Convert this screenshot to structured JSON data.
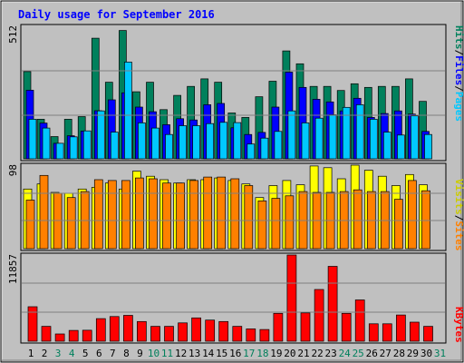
{
  "chart_data": {
    "type": "bar",
    "title": "Daily usage for September 2016",
    "categories": [
      "1",
      "2",
      "3",
      "4",
      "5",
      "6",
      "7",
      "8",
      "9",
      "10",
      "11",
      "12",
      "13",
      "14",
      "15",
      "16",
      "17",
      "18",
      "19",
      "20",
      "21",
      "22",
      "23",
      "24",
      "25",
      "26",
      "27",
      "28",
      "29",
      "30",
      "31"
    ],
    "weekend_days": [
      "3",
      "4",
      "10",
      "11",
      "17",
      "18",
      "24",
      "25",
      "31"
    ],
    "panels": [
      {
        "name": "hits-files-pages",
        "scale_label": "512",
        "scale_max": 512,
        "right_labels": [
          "Pages",
          "Files",
          "Hits"
        ],
        "series": [
          {
            "name": "Hits",
            "color": "#00805c",
            "values": [
              337,
              153,
              86,
              153,
              163,
              466,
              296,
              496,
              259,
              296,
              190,
              245,
              280,
              309,
              296,
              177,
              160,
              240,
              300,
              417,
              367,
              280,
              280,
              264,
              290,
              276,
              280,
              280,
              309,
              222,
              0
            ]
          },
          {
            "name": "Files",
            "color": "#0000ff",
            "values": [
              265,
              138,
              60,
              89,
              107,
              186,
              228,
              255,
              200,
              182,
              132,
              155,
              150,
              209,
              214,
              120,
              94,
              102,
              200,
              335,
              276,
              230,
              220,
              185,
              234,
              160,
              175,
              185,
              173,
              106,
              0
            ]
          },
          {
            "name": "Pages",
            "color": "#00c8ff",
            "values": [
              153,
              119,
              60,
              85,
              108,
              185,
              103,
              374,
              139,
              119,
              94,
              128,
              128,
              136,
              141,
              140,
              57,
              80,
              106,
              185,
              139,
              157,
              170,
              199,
              209,
              153,
              103,
              92,
              166,
              94,
              0
            ]
          }
        ]
      },
      {
        "name": "sites-visits",
        "scale_label": "98",
        "scale_max": 98,
        "right_labels": [
          "Sites",
          "Visits"
        ],
        "series": [
          {
            "name": "Visits",
            "color": "#ffff00",
            "values": [
              70,
              76,
              66,
              65,
              70,
              72,
              77,
              70,
              91,
              85,
              81,
              77,
              81,
              81,
              83,
              80,
              76,
              60,
              74,
              80,
              75,
              97,
              95,
              82,
              98,
              92,
              85,
              74,
              87,
              75,
              0
            ]
          },
          {
            "name": "Sites",
            "color": "#ff8000",
            "values": [
              57,
              86,
              65,
              60,
              67,
              81,
              80,
              80,
              83,
              82,
              77,
              77,
              80,
              84,
              84,
              82,
              74,
              56,
              59,
              62,
              67,
              66,
              66,
              67,
              69,
              67,
              67,
              58,
              80,
              68,
              0
            ]
          }
        ]
      },
      {
        "name": "kbytes",
        "scale_label": "11857",
        "scale_max": 11857,
        "right_labels": [
          "KBytes"
        ],
        "series": [
          {
            "name": "KBytes",
            "color": "#ff0000",
            "values": [
              4740,
              2045,
              1004,
              1491,
              1512,
              3106,
              3394,
              3560,
              2703,
              2045,
              2045,
              2525,
              3204,
              2902,
              2703,
              2045,
              1695,
              1610,
              3833,
              11857,
              3900,
              7110,
              10297,
              3833,
              5675,
              2400,
              2400,
              3613,
              2624,
              2045,
              0
            ]
          }
        ]
      }
    ]
  }
}
